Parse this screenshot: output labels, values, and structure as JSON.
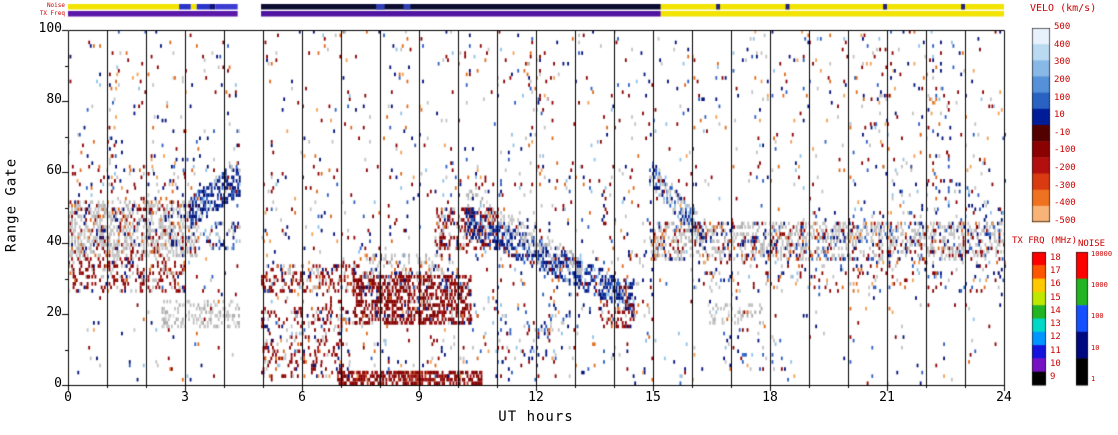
{
  "chart_data": {
    "type": "heatmap",
    "title": "",
    "xlabel": "UT hours",
    "ylabel": "Range Gate",
    "xlim": [
      0,
      24
    ],
    "ylim": [
      0,
      100
    ],
    "xticks": [
      0,
      3,
      6,
      9,
      12,
      15,
      18,
      21,
      24
    ],
    "yticks": [
      0,
      20,
      40,
      60,
      80,
      100
    ],
    "hour_gridlines": true,
    "data_gap_ut": [
      4.4,
      4.95
    ],
    "palettes": {
      "gs": [
        [
          "#c3c3c3",
          70
        ],
        [
          "#ababab",
          18
        ],
        [
          "#dcdcdc",
          12
        ]
      ],
      "neg": [
        [
          "#8b0000",
          50
        ],
        [
          "#760400",
          25
        ],
        [
          "#a31212",
          15
        ],
        [
          "#bf3a1a",
          10
        ]
      ],
      "pos": [
        [
          "#001078",
          40
        ],
        [
          "#0a2f9e",
          28
        ],
        [
          "#2c5fc2",
          18
        ],
        [
          "#8fc2ea",
          14
        ]
      ],
      "mix": [
        [
          "#8b0000",
          26
        ],
        [
          "#001078",
          20
        ],
        [
          "#c3c3c3",
          18
        ],
        [
          "#df6a1c",
          12
        ],
        [
          "#2c5fc2",
          10
        ],
        [
          "#f2a055",
          7
        ],
        [
          "#8fc2ea",
          7
        ]
      ],
      "gsmix": [
        [
          "#c3c3c3",
          60
        ],
        [
          "#8b0000",
          14
        ],
        [
          "#001078",
          10
        ],
        [
          "#ababab",
          8
        ],
        [
          "#df6a1c",
          8
        ]
      ],
      "negmix": [
        [
          "#8b0000",
          52
        ],
        [
          "#c3c3c3",
          18
        ],
        [
          "#a31212",
          12
        ],
        [
          "#001078",
          9
        ],
        [
          "#df6a1c",
          9
        ]
      ],
      "posheavy": [
        [
          "#001078",
          42
        ],
        [
          "#0a2f9e",
          24
        ],
        [
          "#2c5fc2",
          14
        ],
        [
          "#8fc2ea",
          8
        ],
        [
          "#c3c3c3",
          7
        ],
        [
          "#8b0000",
          5
        ]
      ],
      "posgs": [
        [
          "#2c5fc2",
          26
        ],
        [
          "#001078",
          24
        ],
        [
          "#c3c3c3",
          28
        ],
        [
          "#8fc2ea",
          14
        ],
        [
          "#8b0000",
          8
        ]
      ],
      "negheavy": [
        [
          "#8b0000",
          58
        ],
        [
          "#760400",
          20
        ],
        [
          "#a31212",
          10
        ],
        [
          "#001078",
          6
        ],
        [
          "#c3c3c3",
          6
        ]
      ],
      "gsmix2": [
        [
          "#c3c3c3",
          52
        ],
        [
          "#8b0000",
          16
        ],
        [
          "#001078",
          12
        ],
        [
          "#ababab",
          8
        ],
        [
          "#2c5fc2",
          6
        ],
        [
          "#df6a1c",
          6
        ]
      ]
    },
    "scatter_regions": [
      {
        "t0": 0.0,
        "t1": 3.35,
        "g0": 36,
        "g1": 52,
        "d": 0.5,
        "p": "gsmix"
      },
      {
        "t0": 0.0,
        "t1": 3.0,
        "g0": 26,
        "g1": 36,
        "d": 0.3,
        "p": "negmix"
      },
      {
        "t0": 0.1,
        "t1": 3.3,
        "g0": 52,
        "g1": 62,
        "d": 0.06,
        "p": "mix"
      },
      {
        "t0": 2.4,
        "t1": 4.4,
        "g0": 16,
        "g1": 24,
        "d": 0.3,
        "p": "gs"
      },
      {
        "t0": 3.1,
        "t1": 4.45,
        "g0": 44,
        "g1": 52,
        "ge0": 54,
        "ge1": 64,
        "d": 0.5,
        "p": "posheavy"
      },
      {
        "t0": 3.3,
        "t1": 4.45,
        "g0": 38,
        "g1": 46,
        "d": 0.22,
        "p": "posgs"
      },
      {
        "t0": 1.05,
        "t1": 1.25,
        "g0": 60,
        "g1": 95,
        "d": 0.1,
        "p": "mix"
      },
      {
        "t0": 4.95,
        "t1": 7.2,
        "g0": 2,
        "g1": 22,
        "d": 0.18,
        "p": "negmix"
      },
      {
        "t0": 4.95,
        "t1": 7.6,
        "g0": 26,
        "g1": 34,
        "d": 0.28,
        "p": "negmix"
      },
      {
        "t0": 7.6,
        "t1": 9.6,
        "g0": 31,
        "g1": 37,
        "d": 0.28,
        "p": "gsmix"
      },
      {
        "t0": 7.3,
        "t1": 10.3,
        "g0": 17,
        "g1": 31,
        "d": 0.55,
        "p": "negheavy"
      },
      {
        "t0": 6.9,
        "t1": 10.6,
        "g0": 0,
        "g1": 4,
        "d": 0.65,
        "p": "neg"
      },
      {
        "t0": 9.4,
        "t1": 11.0,
        "g0": 38,
        "g1": 50,
        "d": 0.38,
        "p": "negmix"
      },
      {
        "t0": 10.2,
        "t1": 14.5,
        "g0": 42,
        "g1": 50,
        "ge0": 20,
        "ge1": 28,
        "d": 0.52,
        "p": "posheavy"
      },
      {
        "t0": 10.2,
        "t1": 13.2,
        "g0": 50,
        "g1": 55,
        "ge0": 30,
        "ge1": 35,
        "d": 0.22,
        "p": "gs"
      },
      {
        "t0": 11.0,
        "t1": 12.7,
        "g0": 6,
        "g1": 20,
        "d": 0.09,
        "p": "posgs"
      },
      {
        "t0": 13.6,
        "t1": 14.6,
        "g0": 16,
        "g1": 24,
        "d": 0.28,
        "p": "negmix"
      },
      {
        "t0": 14.9,
        "t1": 16.3,
        "g0": 56,
        "g1": 63,
        "ge0": 38,
        "ge1": 46,
        "d": 0.42,
        "p": "posgs"
      },
      {
        "t0": 14.9,
        "t1": 24.0,
        "g0": 35,
        "g1": 46,
        "d": 0.42,
        "p": "gsmix2"
      },
      {
        "t0": 16.0,
        "t1": 24.0,
        "g0": 26,
        "g1": 35,
        "d": 0.09,
        "p": "mix"
      },
      {
        "t0": 16.4,
        "t1": 17.8,
        "g0": 17,
        "g1": 23,
        "d": 0.26,
        "p": "gs"
      },
      {
        "t0": 16.8,
        "t1": 18.4,
        "g0": 3,
        "g1": 15,
        "d": 0.05,
        "p": "posgs"
      },
      {
        "t0": 20.0,
        "t1": 24.0,
        "g0": 44,
        "g1": 58,
        "d": 0.05,
        "p": "posgs"
      },
      {
        "t0": 11.8,
        "t1": 12.4,
        "g0": 60,
        "g1": 95,
        "d": 0.05,
        "p": "mix"
      },
      {
        "t0": 20.3,
        "t1": 21.2,
        "g0": 60,
        "g1": 98,
        "d": 0.05,
        "p": "mix"
      },
      {
        "t0": 21.8,
        "t1": 22.6,
        "g0": 55,
        "g1": 90,
        "d": 0.05,
        "p": "mix"
      },
      {
        "t0": 5.0,
        "t1": 15.0,
        "g0": 34,
        "g1": 60,
        "d": 0.03,
        "p": "mix"
      },
      {
        "t0": 5.0,
        "t1": 15.0,
        "g0": 2,
        "g1": 34,
        "d": 0.035,
        "p": "mix"
      },
      {
        "t0": 0.0,
        "t1": 24.0,
        "g0": 0,
        "g1": 100,
        "d": 0.016,
        "p": "mix"
      },
      {
        "t0": 0.0,
        "t1": 24.0,
        "g0": 55,
        "g1": 100,
        "d": 0.012,
        "p": "mix"
      }
    ]
  },
  "top_bars": {
    "noise_label": "Noise",
    "txfreq_label": "TX Freq",
    "noise_segments": [
      {
        "t0": 0,
        "t1": 2.85,
        "c": "#f2e400"
      },
      {
        "t0": 2.85,
        "t1": 3.15,
        "c": "#2a34c8"
      },
      {
        "t0": 3.15,
        "t1": 3.3,
        "c": "#f2e400"
      },
      {
        "t0": 3.3,
        "t1": 3.62,
        "c": "#2a34c8"
      },
      {
        "t0": 3.62,
        "t1": 3.78,
        "c": "#12127a"
      },
      {
        "t0": 3.78,
        "t1": 4.35,
        "c": "#3c3cd2"
      },
      {
        "t0": 4.95,
        "t1": 15.2,
        "c": "#0c0c30"
      },
      {
        "t0": 7.9,
        "t1": 8.12,
        "c": "#3040b4"
      },
      {
        "t0": 8.6,
        "t1": 8.78,
        "c": "#3040b4"
      },
      {
        "t0": 15.2,
        "t1": 24,
        "c": "#f2e400"
      },
      {
        "t0": 16.62,
        "t1": 16.72,
        "c": "#23237d"
      },
      {
        "t0": 18.4,
        "t1": 18.5,
        "c": "#23237d"
      },
      {
        "t0": 20.9,
        "t1": 21.0,
        "c": "#23237d"
      },
      {
        "t0": 22.9,
        "t1": 23.0,
        "c": "#23237d"
      }
    ],
    "txfreq_segments": [
      {
        "t0": 0,
        "t1": 4.35,
        "c": "#5a18a8"
      },
      {
        "t0": 4.95,
        "t1": 15.2,
        "c": "#4f14a0"
      },
      {
        "t0": 15.2,
        "t1": 24,
        "c": "#f2e400"
      }
    ]
  },
  "colorbars": {
    "velocity": {
      "title": "VELO (km/s)",
      "labels": [
        "500",
        "400",
        "300",
        "200",
        "100",
        "10",
        "-10",
        "-100",
        "-200",
        "-300",
        "-400",
        "-500"
      ],
      "colors": [
        "#e8f2fc",
        "#badaf2",
        "#88b8e6",
        "#5590d8",
        "#2a62c2",
        "#001c98",
        "#520000",
        "#8b0000",
        "#b40f0f",
        "#d93a12",
        "#ef7221",
        "#f8b478"
      ]
    },
    "txfrq": {
      "title": "TX FRQ (MHz)",
      "labels": [
        "18",
        "17",
        "16",
        "15",
        "14",
        "13",
        "12",
        "11",
        "10",
        "9"
      ],
      "colors": [
        "#ff0000",
        "#ff5500",
        "#ffc800",
        "#bfe800",
        "#22b422",
        "#00d8c8",
        "#0096ff",
        "#1414dc",
        "#7612c4",
        "#000000"
      ]
    },
    "noise": {
      "title": "NOISE",
      "labels": [
        "10000",
        "1000",
        "100",
        "10",
        "1"
      ],
      "colors": [
        "#ff0000",
        "#22b422",
        "#1450ff",
        "#000880",
        "#000000"
      ]
    },
    "label_color": "#cc0000"
  }
}
